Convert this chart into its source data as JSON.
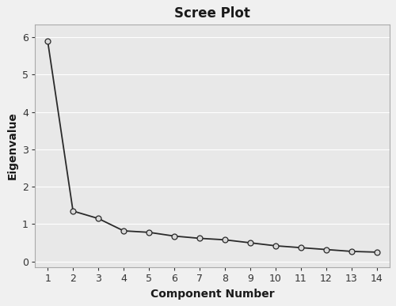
{
  "title": "Scree Plot",
  "xlabel": "Component Number",
  "ylabel": "Eigenvalue",
  "components": [
    1,
    2,
    3,
    4,
    5,
    6,
    7,
    8,
    9,
    10,
    11,
    12,
    13,
    14
  ],
  "eigenvalues": [
    5.9,
    1.35,
    1.15,
    0.82,
    0.78,
    0.68,
    0.62,
    0.58,
    0.5,
    0.42,
    0.37,
    0.32,
    0.27,
    0.25
  ],
  "ylim": [
    -0.15,
    6.35
  ],
  "yticks": [
    0,
    1,
    2,
    3,
    4,
    5,
    6
  ],
  "xlim": [
    0.5,
    14.5
  ],
  "xticks": [
    1,
    2,
    3,
    4,
    5,
    6,
    7,
    8,
    9,
    10,
    11,
    12,
    13,
    14
  ],
  "line_color": "#2a2a2a",
  "marker_facecolor": "#d8d8d8",
  "marker_edgecolor": "#2a2a2a",
  "figure_bg_color": "#f0f0f0",
  "plot_bg_color": "#e8e8e8",
  "grid_color": "#ffffff",
  "spine_color": "#aaaaaa",
  "title_fontsize": 12,
  "label_fontsize": 10,
  "tick_fontsize": 9
}
